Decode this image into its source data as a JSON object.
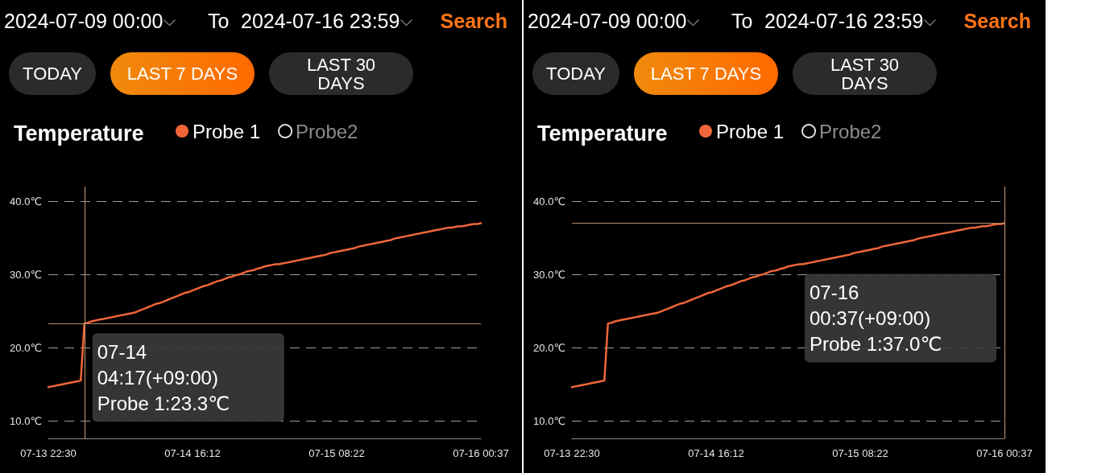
{
  "chart_data": [
    {
      "type": "line",
      "title": "Temperature",
      "legend": "top left",
      "grid": "y",
      "annotations": [
        "2024-07-09 00:00",
        "To",
        "2024-07-16 23:59",
        "Search",
        "TODAY",
        "LAST 7 DAYS",
        "LAST 30 DAYS",
        "07-14\n04:17(+09:00)\nProbe 1:23.3℃"
      ],
      "ref_lines": [
        {
          "axis": "y",
          "value": 23.3,
          "color": "#b38a66"
        }
      ],
      "categories": [
        "07-13 22:30",
        null,
        null,
        null,
        null,
        null,
        null,
        null,
        null,
        null,
        null,
        null,
        null,
        null,
        null,
        null,
        null,
        null,
        null,
        null,
        null,
        null,
        null,
        null,
        null,
        null,
        null,
        null,
        null,
        null,
        null,
        null,
        null,
        null,
        null,
        null,
        null,
        null,
        null,
        null,
        "07-14 16:12",
        null,
        null,
        null,
        null,
        null,
        null,
        null,
        null,
        null,
        null,
        null,
        null,
        null,
        null,
        null,
        null,
        null,
        null,
        null,
        null,
        null,
        null,
        null,
        null,
        null,
        null,
        null,
        null,
        null,
        null,
        null,
        null,
        null,
        null,
        null,
        null,
        null,
        null,
        null,
        "07-15 08:22",
        null,
        null,
        null,
        null,
        null,
        null,
        null,
        null,
        null,
        null,
        null,
        null,
        null,
        null,
        null,
        null,
        null,
        null,
        null,
        null,
        null,
        null,
        null,
        null,
        null,
        null,
        null,
        null,
        null,
        null,
        null,
        null,
        null,
        null,
        null,
        null,
        null,
        null,
        null,
        "07-16 00:37"
      ],
      "series": [
        {
          "name": "Probe 1",
          "color": "#f0663a",
          "values": [
            14.6,
            14.7,
            14.8,
            14.9,
            15.0,
            15.1,
            15.2,
            15.3,
            15.4,
            15.5,
            23.3,
            23.4,
            23.6,
            23.7,
            23.8,
            23.9,
            24.0,
            24.1,
            24.2,
            24.3,
            24.4,
            24.5,
            24.6,
            24.7,
            24.8,
            25.0,
            25.2,
            25.4,
            25.6,
            25.8,
            26.0,
            26.1,
            26.3,
            26.5,
            26.7,
            26.9,
            27.1,
            27.3,
            27.5,
            27.6,
            27.8,
            28.0,
            28.2,
            28.4,
            28.5,
            28.7,
            28.9,
            29.1,
            29.2,
            29.4,
            29.6,
            29.7,
            29.9,
            30.0,
            30.2,
            30.4,
            30.5,
            30.6,
            30.8,
            30.9,
            31.1,
            31.2,
            31.3,
            31.4,
            31.4,
            31.5,
            31.6,
            31.7,
            31.8,
            31.9,
            32.0,
            32.1,
            32.2,
            32.3,
            32.4,
            32.5,
            32.6,
            32.7,
            32.9,
            33.0,
            33.1,
            33.2,
            33.3,
            33.4,
            33.5,
            33.6,
            33.8,
            33.9,
            34.0,
            34.1,
            34.2,
            34.3,
            34.4,
            34.5,
            34.6,
            34.7,
            34.9,
            35.0,
            35.1,
            35.2,
            35.3,
            35.4,
            35.5,
            35.6,
            35.7,
            35.8,
            35.9,
            36.0,
            36.1,
            36.2,
            36.3,
            36.4,
            36.4,
            36.5,
            36.6,
            36.6,
            36.7,
            36.8,
            36.9,
            36.9,
            37.0
          ]
        },
        {
          "name": "Probe2",
          "values": [
            null,
            null,
            null,
            null,
            null,
            null,
            null,
            null,
            null,
            null,
            null,
            null,
            null,
            null,
            null,
            null,
            null,
            null,
            null,
            null,
            null,
            null,
            null,
            null,
            null,
            null,
            null,
            null,
            null,
            null,
            null,
            null,
            null,
            null,
            null,
            null,
            null,
            null,
            null,
            null,
            null,
            null,
            null,
            null,
            null,
            null,
            null,
            null,
            null,
            null,
            null,
            null,
            null,
            null,
            null,
            null,
            null,
            null,
            null,
            null,
            null,
            null,
            null,
            null,
            null,
            null,
            null,
            null,
            null,
            null,
            null,
            null,
            null,
            null,
            null,
            null,
            null,
            null,
            null,
            null,
            null,
            null,
            null,
            null,
            null,
            null,
            null,
            null,
            null,
            null,
            null,
            null,
            null,
            null,
            null,
            null,
            null,
            null,
            null,
            null,
            null,
            null,
            null,
            null,
            null,
            null,
            null,
            null,
            null,
            null,
            null,
            null,
            null,
            null,
            null,
            null,
            null,
            null,
            null,
            null,
            null
          ]
        }
      ],
      "ylim": [
        7.6,
        42.0
      ],
      "yticks": [
        {
          "value": 10,
          "label": "10.0℃"
        },
        {
          "value": 20,
          "label": "20.0℃"
        },
        {
          "value": 30,
          "label": "30.0℃"
        },
        {
          "value": 40,
          "label": "40.0℃"
        }
      ]
    },
    {
      "type": "line",
      "title": "Temperature",
      "legend": "top left",
      "grid": "y",
      "annotations": [
        "2024-07-09 00:00",
        "To",
        "2024-07-16 23:59",
        "Search",
        "TODAY",
        "LAST 7 DAYS",
        "LAST 30 DAYS",
        "07-16\n00:37(+09:00)\nProbe 1:37.0℃"
      ],
      "ref_lines": [
        {
          "axis": "x",
          "value": "07-16 00:37",
          "color": "#b38a66"
        },
        {
          "axis": "y",
          "value": 37.0,
          "color": "#b38a66"
        }
      ],
      "categories": [
        "07-13 22:30",
        null,
        null,
        null,
        null,
        null,
        null,
        null,
        null,
        null,
        null,
        null,
        null,
        null,
        null,
        null,
        null,
        null,
        null,
        null,
        null,
        null,
        null,
        null,
        null,
        null,
        null,
        null,
        null,
        null,
        null,
        null,
        null,
        null,
        null,
        null,
        null,
        null,
        null,
        null,
        "07-14 16:12",
        null,
        null,
        null,
        null,
        null,
        null,
        null,
        null,
        null,
        null,
        null,
        null,
        null,
        null,
        null,
        null,
        null,
        null,
        null,
        null,
        null,
        null,
        null,
        null,
        null,
        null,
        null,
        null,
        null,
        null,
        null,
        null,
        null,
        null,
        null,
        null,
        null,
        null,
        null,
        "07-15 08:22",
        null,
        null,
        null,
        null,
        null,
        null,
        null,
        null,
        null,
        null,
        null,
        null,
        null,
        null,
        null,
        null,
        null,
        null,
        null,
        null,
        null,
        null,
        null,
        null,
        null,
        null,
        null,
        null,
        null,
        null,
        null,
        null,
        null,
        null,
        null,
        null,
        null,
        null,
        null,
        "07-16 00:37"
      ],
      "series": [
        {
          "name": "Probe 1",
          "color": "#f0663a",
          "values": [
            14.6,
            14.7,
            14.8,
            14.9,
            15.0,
            15.1,
            15.2,
            15.3,
            15.4,
            15.5,
            23.3,
            23.4,
            23.6,
            23.7,
            23.8,
            23.9,
            24.0,
            24.1,
            24.2,
            24.3,
            24.4,
            24.5,
            24.6,
            24.7,
            24.8,
            25.0,
            25.2,
            25.4,
            25.6,
            25.8,
            26.0,
            26.1,
            26.3,
            26.5,
            26.7,
            26.9,
            27.1,
            27.3,
            27.5,
            27.6,
            27.8,
            28.0,
            28.2,
            28.4,
            28.5,
            28.7,
            28.9,
            29.1,
            29.2,
            29.4,
            29.6,
            29.7,
            29.9,
            30.0,
            30.2,
            30.4,
            30.5,
            30.6,
            30.8,
            30.9,
            31.1,
            31.2,
            31.3,
            31.4,
            31.4,
            31.5,
            31.6,
            31.7,
            31.8,
            31.9,
            32.0,
            32.1,
            32.2,
            32.3,
            32.4,
            32.5,
            32.6,
            32.7,
            32.9,
            33.0,
            33.1,
            33.2,
            33.3,
            33.4,
            33.5,
            33.6,
            33.8,
            33.9,
            34.0,
            34.1,
            34.2,
            34.3,
            34.4,
            34.5,
            34.6,
            34.7,
            34.9,
            35.0,
            35.1,
            35.2,
            35.3,
            35.4,
            35.5,
            35.6,
            35.7,
            35.8,
            35.9,
            36.0,
            36.1,
            36.2,
            36.3,
            36.4,
            36.4,
            36.5,
            36.6,
            36.6,
            36.7,
            36.8,
            36.9,
            36.9,
            37.0
          ]
        },
        {
          "name": "Probe2",
          "values": [
            null,
            null,
            null,
            null,
            null,
            null,
            null,
            null,
            null,
            null,
            null,
            null,
            null,
            null,
            null,
            null,
            null,
            null,
            null,
            null,
            null,
            null,
            null,
            null,
            null,
            null,
            null,
            null,
            null,
            null,
            null,
            null,
            null,
            null,
            null,
            null,
            null,
            null,
            null,
            null,
            null,
            null,
            null,
            null,
            null,
            null,
            null,
            null,
            null,
            null,
            null,
            null,
            null,
            null,
            null,
            null,
            null,
            null,
            null,
            null,
            null,
            null,
            null,
            null,
            null,
            null,
            null,
            null,
            null,
            null,
            null,
            null,
            null,
            null,
            null,
            null,
            null,
            null,
            null,
            null,
            null,
            null,
            null,
            null,
            null,
            null,
            null,
            null,
            null,
            null,
            null,
            null,
            null,
            null,
            null,
            null,
            null,
            null,
            null,
            null,
            null,
            null,
            null,
            null,
            null,
            null,
            null,
            null,
            null,
            null,
            null,
            null,
            null,
            null,
            null,
            null,
            null,
            null,
            null,
            null,
            null
          ]
        }
      ],
      "ylim": [
        7.6,
        42.0
      ],
      "yticks": [
        {
          "value": 10,
          "label": "10.0℃"
        },
        {
          "value": 20,
          "label": "20.0℃"
        },
        {
          "value": 30,
          "label": "30.0℃"
        },
        {
          "value": 40,
          "label": "40.0℃"
        }
      ]
    }
  ]
}
